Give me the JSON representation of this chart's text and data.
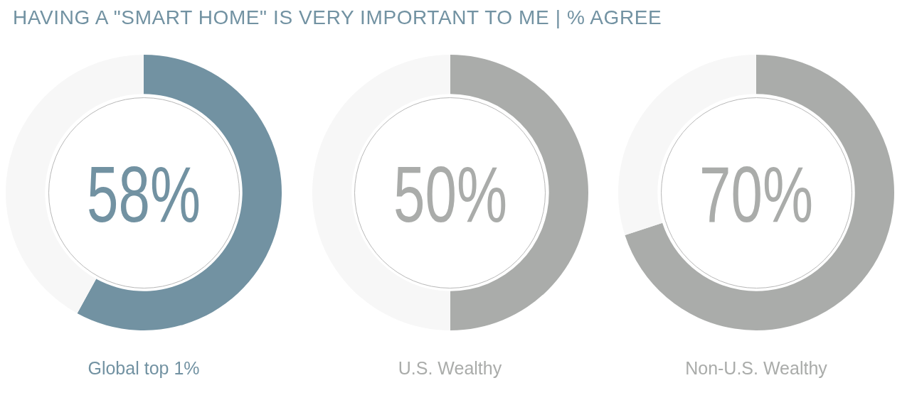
{
  "chart_data": [
    {
      "type": "donut",
      "title": "HAVING A \"SMART HOME\" IS VERY IMPORTANT TO ME | % AGREE",
      "xlabel": "Global top 1%",
      "categories": [
        null,
        null
      ],
      "values": [
        58,
        42
      ],
      "colors": [
        "#7292a2",
        "#f7f7f7"
      ],
      "value_labels": [
        "58%",
        null
      ]
    },
    {
      "type": "donut",
      "xlabel": "U.S. Wealthy",
      "categories": [
        null,
        null
      ],
      "values": [
        50,
        50
      ],
      "colors": [
        "#aaacaa",
        "#f7f7f7"
      ],
      "value_labels": [
        "50%",
        null
      ]
    },
    {
      "type": "donut",
      "xlabel": "Non-U.S. Wealthy",
      "categories": [
        null,
        null
      ],
      "values": [
        70,
        30
      ],
      "colors": [
        "#aaacaa",
        "#f7f7f7"
      ],
      "value_labels": [
        "70%",
        null
      ]
    }
  ]
}
